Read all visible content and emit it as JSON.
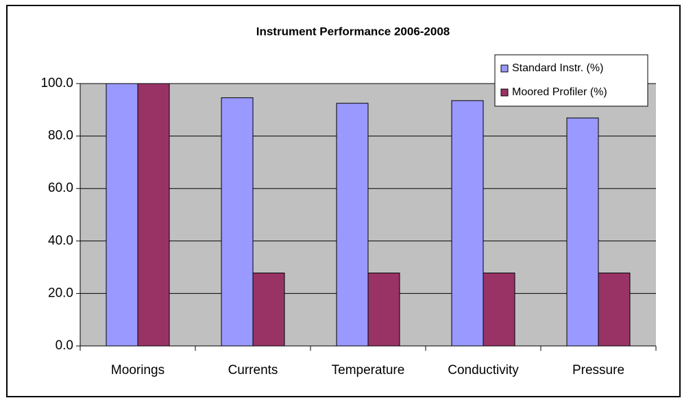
{
  "chart_data": {
    "type": "bar",
    "title": "Instrument Performance 2006-2008",
    "categories": [
      "Moorings",
      "Currents",
      "Temperature",
      "Conductivity",
      "Pressure"
    ],
    "series": [
      {
        "name": "Standard Instr. (%)",
        "color": "#9999ff",
        "values": [
          100,
          94.6,
          92.5,
          93.5,
          86.9
        ]
      },
      {
        "name": "Moored Profiler (%)",
        "color": "#993366",
        "values": [
          100,
          27.8,
          27.8,
          27.8,
          27.8
        ]
      }
    ],
    "ylim": [
      0,
      100
    ],
    "yticks": [
      {
        "value": 0,
        "label": "0.0"
      },
      {
        "value": 20,
        "label": "20.0"
      },
      {
        "value": 40,
        "label": "40.0"
      },
      {
        "value": 60,
        "label": "60.0"
      },
      {
        "value": 80,
        "label": "80.0"
      },
      {
        "value": 100,
        "label": "100.0"
      }
    ],
    "grid": true,
    "legend": "top-right",
    "plot_background": "#c0c0c0"
  }
}
